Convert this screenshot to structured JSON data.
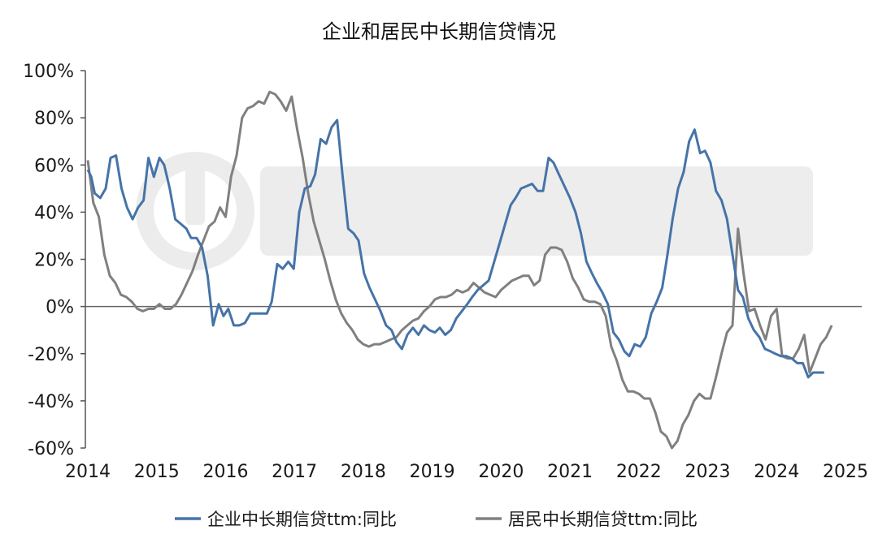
{
  "chart_data": {
    "type": "line",
    "title": "企业和居民中长期信贷情况",
    "ylim": [
      -0.6,
      1.0
    ],
    "xlim": [
      2014.0,
      2025.42
    ],
    "grid": false,
    "legend_position": "bottom",
    "y_ticks": [
      {
        "v": 1.0,
        "label": "100%"
      },
      {
        "v": 0.8,
        "label": "80%"
      },
      {
        "v": 0.6,
        "label": "60%"
      },
      {
        "v": 0.4,
        "label": "40%"
      },
      {
        "v": 0.2,
        "label": "20%"
      },
      {
        "v": 0.0,
        "label": "0%"
      },
      {
        "v": -0.2,
        "label": "-20%"
      },
      {
        "v": -0.4,
        "label": "-40%"
      },
      {
        "v": -0.6,
        "label": "-60%"
      }
    ],
    "x_ticks": [
      {
        "v": 2014,
        "label": "2014"
      },
      {
        "v": 2015,
        "label": "2015"
      },
      {
        "v": 2016,
        "label": "2016"
      },
      {
        "v": 2017,
        "label": "2017"
      },
      {
        "v": 2018,
        "label": "2018"
      },
      {
        "v": 2019,
        "label": "2019"
      },
      {
        "v": 2020,
        "label": "2020"
      },
      {
        "v": 2021,
        "label": "2021"
      },
      {
        "v": 2022,
        "label": "2022"
      },
      {
        "v": 2023,
        "label": "2023"
      },
      {
        "v": 2024,
        "label": "2024"
      },
      {
        "v": 2025,
        "label": "2025"
      }
    ],
    "series": [
      {
        "name": "企业中长期信贷ttm:同比",
        "color": "#4673a8",
        "points": [
          [
            2014.0,
            0.58
          ],
          [
            2014.05,
            0.55
          ],
          [
            2014.1,
            0.48
          ],
          [
            2014.18,
            0.46
          ],
          [
            2014.26,
            0.5
          ],
          [
            2014.33,
            0.63
          ],
          [
            2014.41,
            0.64
          ],
          [
            2014.49,
            0.5
          ],
          [
            2014.57,
            0.42
          ],
          [
            2014.65,
            0.37
          ],
          [
            2014.73,
            0.42
          ],
          [
            2014.81,
            0.45
          ],
          [
            2014.88,
            0.63
          ],
          [
            2014.96,
            0.55
          ],
          [
            2015.04,
            0.63
          ],
          [
            2015.11,
            0.6
          ],
          [
            2015.19,
            0.5
          ],
          [
            2015.27,
            0.37
          ],
          [
            2015.35,
            0.35
          ],
          [
            2015.43,
            0.33
          ],
          [
            2015.5,
            0.29
          ],
          [
            2015.58,
            0.29
          ],
          [
            2015.66,
            0.25
          ],
          [
            2015.74,
            0.13
          ],
          [
            2015.82,
            -0.08
          ],
          [
            2015.9,
            0.01
          ],
          [
            2015.97,
            -0.04
          ],
          [
            2016.04,
            -0.01
          ],
          [
            2016.12,
            -0.08
          ],
          [
            2016.2,
            -0.08
          ],
          [
            2016.28,
            -0.07
          ],
          [
            2016.36,
            -0.03
          ],
          [
            2016.44,
            -0.03
          ],
          [
            2016.52,
            -0.03
          ],
          [
            2016.6,
            -0.03
          ],
          [
            2016.67,
            0.02
          ],
          [
            2016.75,
            0.18
          ],
          [
            2016.83,
            0.16
          ],
          [
            2016.91,
            0.19
          ],
          [
            2016.99,
            0.16
          ],
          [
            2017.07,
            0.4
          ],
          [
            2017.15,
            0.5
          ],
          [
            2017.23,
            0.51
          ],
          [
            2017.3,
            0.56
          ],
          [
            2017.38,
            0.71
          ],
          [
            2017.46,
            0.69
          ],
          [
            2017.54,
            0.76
          ],
          [
            2017.62,
            0.79
          ],
          [
            2017.7,
            0.55
          ],
          [
            2017.78,
            0.33
          ],
          [
            2017.86,
            0.31
          ],
          [
            2017.93,
            0.28
          ],
          [
            2018.01,
            0.14
          ],
          [
            2018.09,
            0.08
          ],
          [
            2018.17,
            0.03
          ],
          [
            2018.25,
            -0.02
          ],
          [
            2018.33,
            -0.08
          ],
          [
            2018.41,
            -0.1
          ],
          [
            2018.48,
            -0.15
          ],
          [
            2018.56,
            -0.18
          ],
          [
            2018.64,
            -0.12
          ],
          [
            2018.72,
            -0.09
          ],
          [
            2018.8,
            -0.12
          ],
          [
            2018.88,
            -0.08
          ],
          [
            2018.96,
            -0.1
          ],
          [
            2019.04,
            -0.11
          ],
          [
            2019.11,
            -0.09
          ],
          [
            2019.19,
            -0.12
          ],
          [
            2019.27,
            -0.1
          ],
          [
            2019.35,
            -0.05
          ],
          [
            2019.43,
            -0.02
          ],
          [
            2019.51,
            0.01
          ],
          [
            2019.58,
            0.04
          ],
          [
            2019.66,
            0.07
          ],
          [
            2019.74,
            0.09
          ],
          [
            2019.82,
            0.11
          ],
          [
            2019.9,
            0.19
          ],
          [
            2019.98,
            0.27
          ],
          [
            2020.06,
            0.35
          ],
          [
            2020.14,
            0.43
          ],
          [
            2020.21,
            0.46
          ],
          [
            2020.29,
            0.5
          ],
          [
            2020.37,
            0.51
          ],
          [
            2020.45,
            0.52
          ],
          [
            2020.53,
            0.49
          ],
          [
            2020.61,
            0.49
          ],
          [
            2020.69,
            0.63
          ],
          [
            2020.76,
            0.61
          ],
          [
            2020.84,
            0.56
          ],
          [
            2020.92,
            0.51
          ],
          [
            2021.0,
            0.46
          ],
          [
            2021.08,
            0.4
          ],
          [
            2021.16,
            0.31
          ],
          [
            2021.24,
            0.19
          ],
          [
            2021.32,
            0.14
          ],
          [
            2021.39,
            0.1
          ],
          [
            2021.47,
            0.06
          ],
          [
            2021.55,
            0.01
          ],
          [
            2021.63,
            -0.11
          ],
          [
            2021.71,
            -0.14
          ],
          [
            2021.79,
            -0.19
          ],
          [
            2021.86,
            -0.21
          ],
          [
            2021.94,
            -0.16
          ],
          [
            2022.02,
            -0.17
          ],
          [
            2022.1,
            -0.13
          ],
          [
            2022.18,
            -0.03
          ],
          [
            2022.26,
            0.02
          ],
          [
            2022.34,
            0.08
          ],
          [
            2022.41,
            0.21
          ],
          [
            2022.49,
            0.37
          ],
          [
            2022.57,
            0.5
          ],
          [
            2022.65,
            0.57
          ],
          [
            2022.73,
            0.7
          ],
          [
            2022.81,
            0.75
          ],
          [
            2022.89,
            0.65
          ],
          [
            2022.96,
            0.66
          ],
          [
            2023.04,
            0.61
          ],
          [
            2023.12,
            0.49
          ],
          [
            2023.2,
            0.45
          ],
          [
            2023.28,
            0.37
          ],
          [
            2023.36,
            0.22
          ],
          [
            2023.44,
            0.07
          ],
          [
            2023.51,
            0.04
          ],
          [
            2023.59,
            -0.05
          ],
          [
            2023.67,
            -0.1
          ],
          [
            2023.75,
            -0.13
          ],
          [
            2023.83,
            -0.18
          ],
          [
            2023.91,
            -0.19
          ],
          [
            2023.98,
            -0.2
          ],
          [
            2024.06,
            -0.21
          ],
          [
            2024.14,
            -0.21
          ],
          [
            2024.22,
            -0.22
          ],
          [
            2024.3,
            -0.24
          ],
          [
            2024.38,
            -0.24
          ],
          [
            2024.46,
            -0.3
          ],
          [
            2024.53,
            -0.28
          ],
          [
            2024.61,
            -0.28
          ],
          [
            2024.69,
            -0.28
          ]
        ]
      },
      {
        "name": "居民中长期信贷ttm:同比",
        "color": "#808080",
        "points": [
          [
            2014.0,
            0.62
          ],
          [
            2014.08,
            0.44
          ],
          [
            2014.16,
            0.38
          ],
          [
            2014.24,
            0.22
          ],
          [
            2014.32,
            0.13
          ],
          [
            2014.4,
            0.1
          ],
          [
            2014.48,
            0.05
          ],
          [
            2014.56,
            0.04
          ],
          [
            2014.64,
            0.02
          ],
          [
            2014.72,
            -0.01
          ],
          [
            2014.8,
            -0.02
          ],
          [
            2014.88,
            -0.01
          ],
          [
            2014.96,
            -0.01
          ],
          [
            2015.04,
            0.01
          ],
          [
            2015.12,
            -0.01
          ],
          [
            2015.2,
            -0.01
          ],
          [
            2015.28,
            0.01
          ],
          [
            2015.36,
            0.05
          ],
          [
            2015.44,
            0.1
          ],
          [
            2015.52,
            0.15
          ],
          [
            2015.6,
            0.22
          ],
          [
            2015.68,
            0.28
          ],
          [
            2015.76,
            0.34
          ],
          [
            2015.84,
            0.36
          ],
          [
            2015.92,
            0.42
          ],
          [
            2016.0,
            0.38
          ],
          [
            2016.08,
            0.55
          ],
          [
            2016.16,
            0.64
          ],
          [
            2016.24,
            0.8
          ],
          [
            2016.32,
            0.84
          ],
          [
            2016.4,
            0.85
          ],
          [
            2016.48,
            0.87
          ],
          [
            2016.56,
            0.86
          ],
          [
            2016.64,
            0.91
          ],
          [
            2016.72,
            0.9
          ],
          [
            2016.8,
            0.87
          ],
          [
            2016.88,
            0.83
          ],
          [
            2016.96,
            0.89
          ],
          [
            2017.04,
            0.75
          ],
          [
            2017.12,
            0.63
          ],
          [
            2017.2,
            0.48
          ],
          [
            2017.28,
            0.36
          ],
          [
            2017.36,
            0.28
          ],
          [
            2017.44,
            0.2
          ],
          [
            2017.52,
            0.11
          ],
          [
            2017.6,
            0.03
          ],
          [
            2017.68,
            -0.03
          ],
          [
            2017.76,
            -0.07
          ],
          [
            2017.84,
            -0.1
          ],
          [
            2017.92,
            -0.14
          ],
          [
            2018.0,
            -0.16
          ],
          [
            2018.08,
            -0.17
          ],
          [
            2018.16,
            -0.16
          ],
          [
            2018.24,
            -0.16
          ],
          [
            2018.32,
            -0.15
          ],
          [
            2018.4,
            -0.14
          ],
          [
            2018.48,
            -0.13
          ],
          [
            2018.56,
            -0.1
          ],
          [
            2018.64,
            -0.08
          ],
          [
            2018.72,
            -0.06
          ],
          [
            2018.8,
            -0.05
          ],
          [
            2018.88,
            -0.02
          ],
          [
            2018.96,
            0.0
          ],
          [
            2019.04,
            0.03
          ],
          [
            2019.12,
            0.04
          ],
          [
            2019.2,
            0.04
          ],
          [
            2019.28,
            0.05
          ],
          [
            2019.36,
            0.07
          ],
          [
            2019.44,
            0.06
          ],
          [
            2019.52,
            0.07
          ],
          [
            2019.6,
            0.1
          ],
          [
            2019.68,
            0.08
          ],
          [
            2019.76,
            0.06
          ],
          [
            2019.84,
            0.05
          ],
          [
            2019.92,
            0.04
          ],
          [
            2020.0,
            0.07
          ],
          [
            2020.08,
            0.09
          ],
          [
            2020.16,
            0.11
          ],
          [
            2020.24,
            0.12
          ],
          [
            2020.32,
            0.13
          ],
          [
            2020.4,
            0.13
          ],
          [
            2020.48,
            0.09
          ],
          [
            2020.56,
            0.11
          ],
          [
            2020.64,
            0.22
          ],
          [
            2020.72,
            0.25
          ],
          [
            2020.8,
            0.25
          ],
          [
            2020.88,
            0.24
          ],
          [
            2020.96,
            0.19
          ],
          [
            2021.04,
            0.12
          ],
          [
            2021.12,
            0.08
          ],
          [
            2021.2,
            0.03
          ],
          [
            2021.28,
            0.02
          ],
          [
            2021.36,
            0.02
          ],
          [
            2021.44,
            0.01
          ],
          [
            2021.52,
            -0.04
          ],
          [
            2021.6,
            -0.17
          ],
          [
            2021.68,
            -0.23
          ],
          [
            2021.76,
            -0.31
          ],
          [
            2021.84,
            -0.36
          ],
          [
            2021.92,
            -0.36
          ],
          [
            2022.0,
            -0.37
          ],
          [
            2022.08,
            -0.39
          ],
          [
            2022.16,
            -0.39
          ],
          [
            2022.24,
            -0.45
          ],
          [
            2022.32,
            -0.53
          ],
          [
            2022.4,
            -0.55
          ],
          [
            2022.48,
            -0.61
          ],
          [
            2022.56,
            -0.57
          ],
          [
            2022.64,
            -0.5
          ],
          [
            2022.72,
            -0.46
          ],
          [
            2022.8,
            -0.4
          ],
          [
            2022.88,
            -0.37
          ],
          [
            2022.96,
            -0.39
          ],
          [
            2023.04,
            -0.39
          ],
          [
            2023.12,
            -0.3
          ],
          [
            2023.2,
            -0.2
          ],
          [
            2023.28,
            -0.11
          ],
          [
            2023.36,
            -0.08
          ],
          [
            2023.44,
            0.33
          ],
          [
            2023.52,
            0.14
          ],
          [
            2023.6,
            -0.02
          ],
          [
            2023.68,
            -0.01
          ],
          [
            2023.76,
            -0.08
          ],
          [
            2023.84,
            -0.14
          ],
          [
            2023.92,
            -0.04
          ],
          [
            2024.0,
            -0.01
          ],
          [
            2024.08,
            -0.21
          ],
          [
            2024.16,
            -0.22
          ],
          [
            2024.24,
            -0.22
          ],
          [
            2024.32,
            -0.18
          ],
          [
            2024.4,
            -0.12
          ],
          [
            2024.48,
            -0.28
          ],
          [
            2024.56,
            -0.22
          ],
          [
            2024.64,
            -0.16
          ],
          [
            2024.72,
            -0.13
          ],
          [
            2024.8,
            -0.08
          ]
        ]
      }
    ]
  }
}
